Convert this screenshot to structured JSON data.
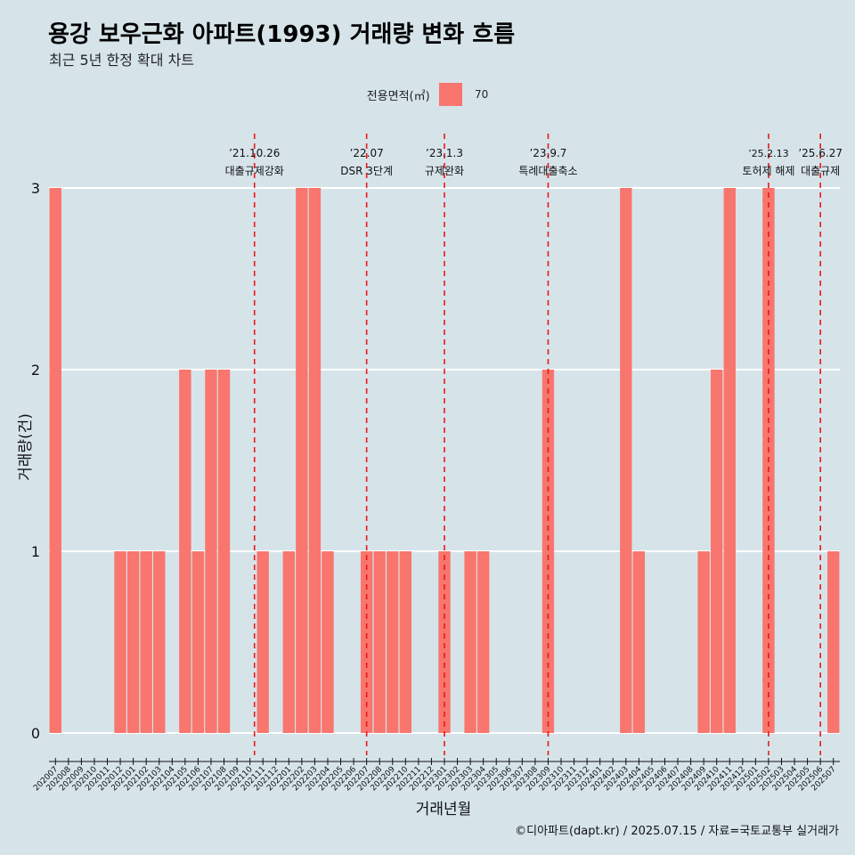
{
  "header": {
    "title": "용강 보우근화 아파트(1993) 거래량 변화 흐름",
    "subtitle": "최근 5년 한정 확대 차트"
  },
  "legend": {
    "title": "전용면적(㎡)",
    "items": [
      {
        "label": "70",
        "color": "#f8766d"
      }
    ]
  },
  "footer": {
    "caption": "©디아파트(dapt.kr) / 2025.07.15 / 자료=국토교통부 실거래가"
  },
  "chart_data": {
    "type": "bar",
    "xlabel": "거래년월",
    "ylabel": "거래량(건)",
    "ylim": [
      0,
      3
    ],
    "yticks": [
      0,
      1,
      2,
      3
    ],
    "grid": true,
    "legend_position": "top",
    "bar_color": "#f8766d",
    "background": "#d6e4ea",
    "categories": [
      "202007",
      "202008",
      "202009",
      "202010",
      "202011",
      "202012",
      "202101",
      "202102",
      "202103",
      "202104",
      "202105",
      "202106",
      "202107",
      "202108",
      "202109",
      "202110",
      "202111",
      "202112",
      "202201",
      "202202",
      "202203",
      "202204",
      "202205",
      "202206",
      "202207",
      "202208",
      "202209",
      "202210",
      "202211",
      "202212",
      "202301",
      "202302",
      "202303",
      "202304",
      "202305",
      "202306",
      "202307",
      "202308",
      "202309",
      "202310",
      "202311",
      "202312",
      "202401",
      "202402",
      "202403",
      "202404",
      "202405",
      "202406",
      "202407",
      "202408",
      "202409",
      "202410",
      "202411",
      "202412",
      "202501",
      "202502",
      "202503",
      "202504",
      "202505",
      "202506",
      "202507"
    ],
    "series": [
      {
        "name": "70",
        "values": [
          3,
          0,
          0,
          0,
          0,
          1,
          1,
          1,
          1,
          0,
          2,
          1,
          2,
          2,
          0,
          0,
          1,
          0,
          1,
          3,
          3,
          1,
          0,
          0,
          1,
          1,
          1,
          1,
          0,
          0,
          1,
          0,
          1,
          1,
          0,
          0,
          0,
          0,
          2,
          0,
          0,
          0,
          0,
          0,
          3,
          1,
          0,
          0,
          0,
          0,
          1,
          2,
          3,
          0,
          0,
          3,
          0,
          0,
          0,
          0,
          1
        ]
      }
    ],
    "annotations": [
      {
        "date": "’21.10.26",
        "text": "대출규제강화",
        "x_category": "202110",
        "offset": 0.35
      },
      {
        "date": "’22.07",
        "text": "DSR 3단계",
        "x_category": "202207",
        "offset": 0.0
      },
      {
        "date": "’23.1.3",
        "text": "규제완화",
        "x_category": "202301",
        "offset": 0.0
      },
      {
        "date": "’23.9.7",
        "text": "특례대출축소",
        "x_category": "202309",
        "offset": 0.0
      },
      {
        "date": "’25.2.13",
        "text": "토허제 해제",
        "x_category": "202502",
        "offset": 0.0
      },
      {
        "date": "’25.6.27",
        "text": "대출규제",
        "x_category": "202506",
        "offset": 0.0
      }
    ]
  }
}
